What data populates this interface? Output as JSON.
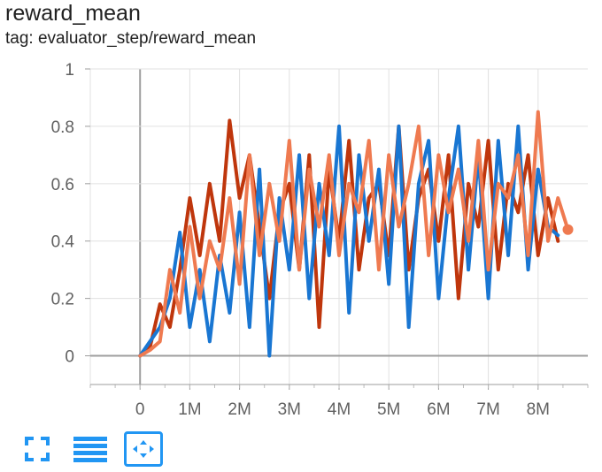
{
  "header": {
    "title": "reward_mean",
    "tag": "tag: evaluator_step/reward_mean"
  },
  "toolbar": {
    "icons": [
      "fullscreen-icon",
      "menu-list-icon",
      "fit-domain-icon"
    ],
    "accent": "#2196f3"
  },
  "chart_data": {
    "type": "line",
    "title": "reward_mean",
    "xlabel": "",
    "ylabel": "",
    "xlim": [
      -1000000,
      9000000
    ],
    "ylim": [
      -0.1,
      1.0
    ],
    "xticks": [
      0,
      1000000,
      2000000,
      3000000,
      4000000,
      5000000,
      6000000,
      7000000,
      8000000
    ],
    "xtick_labels": [
      "0",
      "1M",
      "2M",
      "3M",
      "4M",
      "5M",
      "6M",
      "7M",
      "8M"
    ],
    "yticks": [
      0,
      0.2,
      0.4,
      0.6,
      0.8,
      1.0
    ],
    "ytick_labels": [
      "0",
      "0.2",
      "0.4",
      "0.6",
      "0.8",
      "1"
    ],
    "grid": true,
    "series": [
      {
        "color": "#bf360c",
        "x": [
          0,
          200000,
          400000,
          600000,
          800000,
          1000000,
          1200000,
          1400000,
          1600000,
          1800000,
          2000000,
          2200000,
          2400000,
          2600000,
          2800000,
          3000000,
          3200000,
          3400000,
          3600000,
          3800000,
          4000000,
          4200000,
          4400000,
          4600000,
          4800000,
          5000000,
          5200000,
          5400000,
          5600000,
          5800000,
          6000000,
          6200000,
          6400000,
          6600000,
          6800000,
          7000000,
          7200000,
          7400000,
          7600000,
          7800000,
          8000000,
          8200000,
          8400000
        ],
        "y": [
          0.0,
          0.03,
          0.18,
          0.1,
          0.3,
          0.55,
          0.35,
          0.6,
          0.4,
          0.82,
          0.55,
          0.7,
          0.45,
          0.2,
          0.5,
          0.6,
          0.3,
          0.7,
          0.1,
          0.65,
          0.4,
          0.75,
          0.3,
          0.55,
          0.6,
          0.35,
          0.8,
          0.3,
          0.55,
          0.65,
          0.4,
          0.7,
          0.2,
          0.6,
          0.45,
          0.75,
          0.3,
          0.6,
          0.5,
          0.7,
          0.35,
          0.55,
          0.4
        ]
      },
      {
        "color": "#1976d2",
        "x": [
          0,
          200000,
          400000,
          600000,
          800000,
          1000000,
          1200000,
          1400000,
          1600000,
          1800000,
          2000000,
          2200000,
          2400000,
          2600000,
          2800000,
          3000000,
          3200000,
          3400000,
          3600000,
          3800000,
          4000000,
          4200000,
          4400000,
          4600000,
          4800000,
          5000000,
          5200000,
          5400000,
          5600000,
          5800000,
          6000000,
          6200000,
          6400000,
          6600000,
          6800000,
          7000000,
          7200000,
          7400000,
          7600000,
          7800000,
          8000000,
          8200000,
          8400000
        ],
        "y": [
          0.0,
          0.05,
          0.1,
          0.2,
          0.43,
          0.1,
          0.3,
          0.05,
          0.35,
          0.15,
          0.5,
          0.1,
          0.65,
          0.0,
          0.55,
          0.3,
          0.7,
          0.2,
          0.6,
          0.35,
          0.8,
          0.15,
          0.7,
          0.4,
          0.65,
          0.25,
          0.8,
          0.1,
          0.6,
          0.75,
          0.2,
          0.55,
          0.8,
          0.3,
          0.7,
          0.2,
          0.75,
          0.35,
          0.8,
          0.3,
          0.65,
          0.45,
          0.42
        ]
      },
      {
        "color": "#ef7a50",
        "x": [
          0,
          200000,
          400000,
          600000,
          800000,
          1000000,
          1200000,
          1400000,
          1600000,
          1800000,
          2000000,
          2200000,
          2400000,
          2600000,
          2800000,
          3000000,
          3200000,
          3400000,
          3600000,
          3800000,
          4000000,
          4200000,
          4400000,
          4600000,
          4800000,
          5000000,
          5200000,
          5400000,
          5600000,
          5800000,
          6000000,
          6200000,
          6400000,
          6600000,
          6800000,
          7000000,
          7200000,
          7400000,
          7600000,
          7800000,
          8000000,
          8200000,
          8400000,
          8600000
        ],
        "y": [
          0.0,
          0.02,
          0.05,
          0.3,
          0.15,
          0.45,
          0.2,
          0.4,
          0.3,
          0.55,
          0.25,
          0.7,
          0.35,
          0.6,
          0.4,
          0.75,
          0.3,
          0.65,
          0.45,
          0.7,
          0.35,
          0.6,
          0.5,
          0.75,
          0.3,
          0.7,
          0.45,
          0.6,
          0.8,
          0.35,
          0.7,
          0.5,
          0.65,
          0.4,
          0.75,
          0.3,
          0.6,
          0.55,
          0.7,
          0.35,
          0.85,
          0.4,
          0.55,
          0.44
        ]
      }
    ]
  }
}
